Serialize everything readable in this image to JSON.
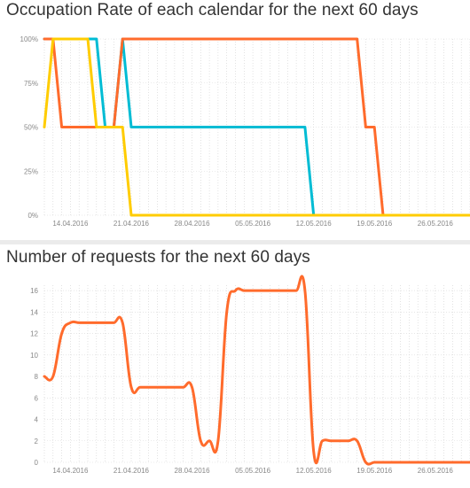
{
  "chart_data": [
    {
      "type": "line",
      "title": "Occupation Rate of each calendar for the next 60 days",
      "xlabel": "",
      "ylabel": "",
      "x_range": [
        "2016-04-11",
        "2016-05-30"
      ],
      "ylim": [
        0,
        100
      ],
      "y_ticks": [
        "100%",
        "75%",
        "50%",
        "25%",
        "0%"
      ],
      "x_ticks": [
        "14.04.2016",
        "21.04.2016",
        "28.04.2016",
        "05.05.2016",
        "12.05.2016",
        "19.05.2016",
        "26.05.2016"
      ],
      "grid": true,
      "legend": "none",
      "series": [
        {
          "color": "#00bcd4",
          "points": [
            [
              "2016-04-11",
              100
            ],
            [
              "2016-04-17",
              100
            ],
            [
              "2016-04-18",
              50
            ],
            [
              "2016-04-19",
              50
            ],
            [
              "2016-04-20",
              100
            ],
            [
              "2016-04-21",
              50
            ],
            [
              "2016-05-11",
              50
            ],
            [
              "2016-05-12",
              0
            ],
            [
              "2016-05-30",
              0
            ]
          ]
        },
        {
          "color": "#ff6b2c",
          "points": [
            [
              "2016-04-11",
              100
            ],
            [
              "2016-04-12",
              100
            ],
            [
              "2016-04-13",
              50
            ],
            [
              "2016-04-19",
              50
            ],
            [
              "2016-04-20",
              100
            ],
            [
              "2016-05-17",
              100
            ],
            [
              "2016-05-18",
              50
            ],
            [
              "2016-05-19",
              50
            ],
            [
              "2016-05-20",
              0
            ],
            [
              "2016-05-30",
              0
            ]
          ]
        },
        {
          "color": "#ffcc00",
          "points": [
            [
              "2016-04-11",
              50
            ],
            [
              "2016-04-12",
              100
            ],
            [
              "2016-04-16",
              100
            ],
            [
              "2016-04-17",
              50
            ],
            [
              "2016-04-20",
              50
            ],
            [
              "2016-04-21",
              0
            ],
            [
              "2016-05-30",
              0
            ]
          ]
        }
      ]
    },
    {
      "type": "line",
      "title": "Number of requests for the next 60 days",
      "xlabel": "",
      "ylabel": "",
      "x_range": [
        "2016-04-11",
        "2016-05-30"
      ],
      "ylim": [
        0,
        16.5
      ],
      "y_ticks": [
        "16",
        "14",
        "12",
        "10",
        "8",
        "6",
        "4",
        "2",
        "0"
      ],
      "x_ticks": [
        "14.04.2016",
        "21.04.2016",
        "28.04.2016",
        "05.05.2016",
        "12.05.2016",
        "19.05.2016",
        "26.05.2016"
      ],
      "grid": true,
      "legend": "none",
      "series": [
        {
          "color": "#ff6b2c",
          "points": [
            [
              "2016-04-11",
              8
            ],
            [
              "2016-04-12",
              8
            ],
            [
              "2016-04-13",
              12
            ],
            [
              "2016-04-14",
              13
            ],
            [
              "2016-04-15",
              13
            ],
            [
              "2016-04-16",
              13
            ],
            [
              "2016-04-17",
              13
            ],
            [
              "2016-04-18",
              13
            ],
            [
              "2016-04-19",
              13
            ],
            [
              "2016-04-20",
              13
            ],
            [
              "2016-04-21",
              7
            ],
            [
              "2016-04-22",
              7
            ],
            [
              "2016-04-23",
              7
            ],
            [
              "2016-04-24",
              7
            ],
            [
              "2016-04-25",
              7
            ],
            [
              "2016-04-26",
              7
            ],
            [
              "2016-04-27",
              7
            ],
            [
              "2016-04-28",
              7
            ],
            [
              "2016-04-29",
              2
            ],
            [
              "2016-04-30",
              2
            ],
            [
              "2016-05-01",
              2
            ],
            [
              "2016-05-02",
              14
            ],
            [
              "2016-05-03",
              16
            ],
            [
              "2016-05-04",
              16
            ],
            [
              "2016-05-05",
              16
            ],
            [
              "2016-05-06",
              16
            ],
            [
              "2016-05-07",
              16
            ],
            [
              "2016-05-08",
              16
            ],
            [
              "2016-05-09",
              16
            ],
            [
              "2016-05-10",
              16
            ],
            [
              "2016-05-11",
              16
            ],
            [
              "2016-05-12",
              1
            ],
            [
              "2016-05-13",
              2
            ],
            [
              "2016-05-14",
              2
            ],
            [
              "2016-05-15",
              2
            ],
            [
              "2016-05-16",
              2
            ],
            [
              "2016-05-17",
              2
            ],
            [
              "2016-05-18",
              0
            ],
            [
              "2016-05-19",
              0
            ],
            [
              "2016-05-20",
              0
            ],
            [
              "2016-05-21",
              0
            ],
            [
              "2016-05-22",
              0
            ],
            [
              "2016-05-23",
              0
            ],
            [
              "2016-05-24",
              0
            ],
            [
              "2016-05-25",
              0
            ],
            [
              "2016-05-26",
              0
            ],
            [
              "2016-05-27",
              0
            ],
            [
              "2016-05-28",
              0
            ],
            [
              "2016-05-29",
              0
            ],
            [
              "2016-05-30",
              0
            ]
          ]
        }
      ]
    }
  ]
}
